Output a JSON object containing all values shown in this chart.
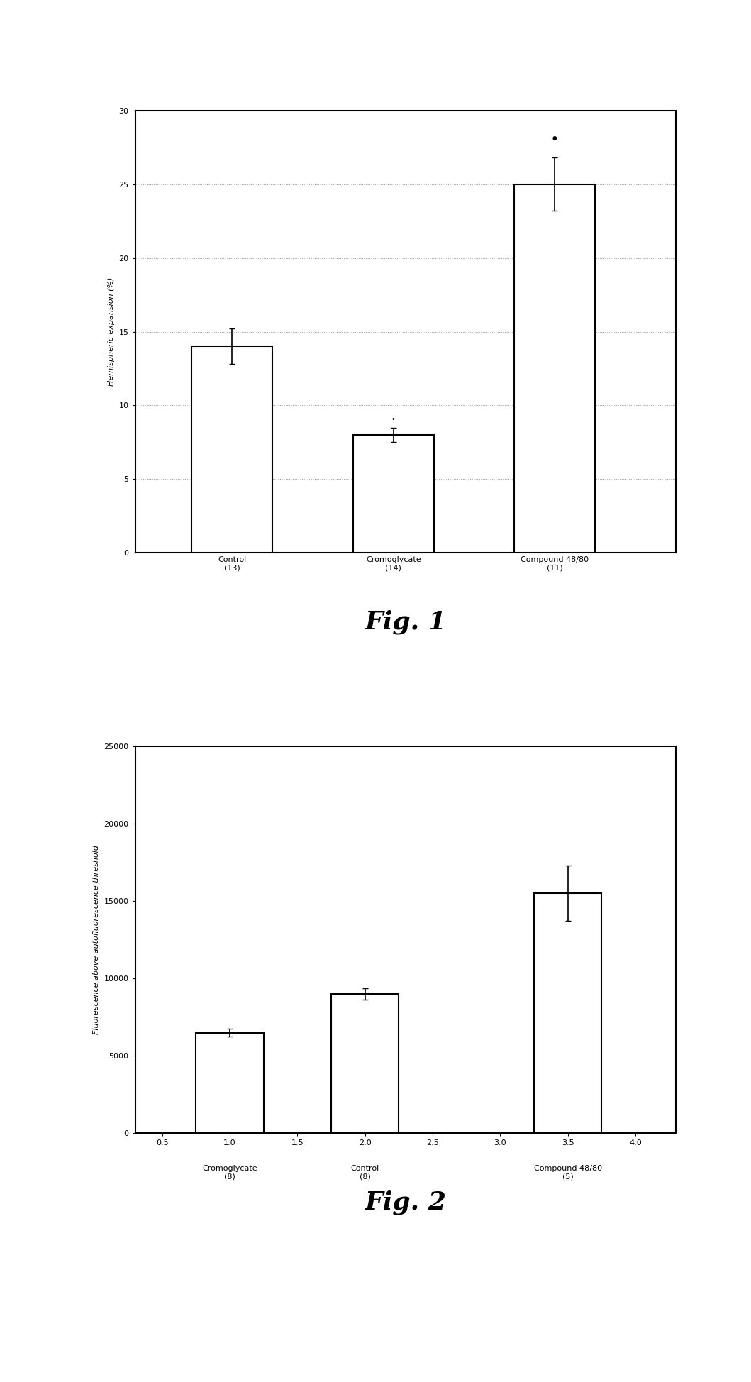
{
  "fig1": {
    "categories": [
      "Control\n(13)",
      "Cromoglycate\n(14)",
      "Compound 48/80\n(11)"
    ],
    "values": [
      14.0,
      8.0,
      25.0
    ],
    "errors": [
      1.2,
      0.5,
      1.8
    ],
    "ylabel": "Hemispheric expansion (%)",
    "ylim": [
      0,
      30
    ],
    "yticks": [
      0,
      5,
      10,
      15,
      20,
      25,
      30
    ],
    "bar_positions": [
      1,
      2,
      3
    ],
    "bar_width": 0.5,
    "bar_color": "white",
    "bar_edgecolor": "black",
    "grid_color": "#999999",
    "title": "Fig. 1",
    "fig_label_fontsize": 26
  },
  "fig2": {
    "categories": [
      "Cromoglycate\n(8)",
      "Control\n(8)",
      "Compound 48/80\n(5)"
    ],
    "values": [
      6500,
      9000,
      15500
    ],
    "errors": [
      250,
      350,
      1800
    ],
    "ylabel": "Fluorescence above autofluorescence threshold",
    "ylim": [
      0,
      25000
    ],
    "yticks": [
      0,
      5000,
      10000,
      15000,
      20000,
      25000
    ],
    "bar_positions": [
      1.0,
      2.0,
      3.5
    ],
    "xtick_positions": [
      0.5,
      1.0,
      1.5,
      2.0,
      2.5,
      3.0,
      3.5,
      4.0
    ],
    "xtick_labels": [
      "0.5",
      "1.0",
      "1.5",
      "2.0",
      "2.5",
      "3.0",
      "3.5",
      "4.0"
    ],
    "bar_width": 0.5,
    "bar_color": "white",
    "bar_edgecolor": "black",
    "title": "Fig. 2",
    "fig_label_fontsize": 26
  },
  "background_color": "white",
  "tick_fontsize": 8,
  "label_fontsize": 8,
  "cat_fontsize": 8
}
